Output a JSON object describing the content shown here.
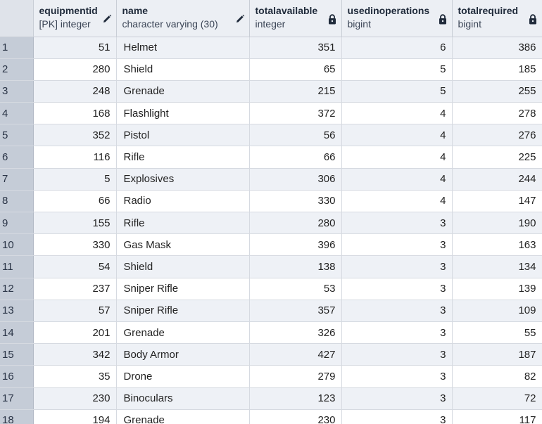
{
  "columns": [
    {
      "name": "equipmentid",
      "type": "[PK] integer",
      "icon": "pencil-icon"
    },
    {
      "name": "name",
      "type": "character varying (30)",
      "icon": "pencil-icon"
    },
    {
      "name": "totalavailable",
      "type": "integer",
      "icon": "lock-icon"
    },
    {
      "name": "usedinoperations",
      "type": "bigint",
      "icon": "lock-icon"
    },
    {
      "name": "totalrequired",
      "type": "bigint",
      "icon": "lock-icon"
    }
  ],
  "rows": [
    {
      "rn": "1",
      "equipmentid": "51",
      "name": "Helmet",
      "totalavailable": "351",
      "usedinoperations": "6",
      "totalrequired": "386"
    },
    {
      "rn": "2",
      "equipmentid": "280",
      "name": "Shield",
      "totalavailable": "65",
      "usedinoperations": "5",
      "totalrequired": "185"
    },
    {
      "rn": "3",
      "equipmentid": "248",
      "name": "Grenade",
      "totalavailable": "215",
      "usedinoperations": "5",
      "totalrequired": "255"
    },
    {
      "rn": "4",
      "equipmentid": "168",
      "name": "Flashlight",
      "totalavailable": "372",
      "usedinoperations": "4",
      "totalrequired": "278"
    },
    {
      "rn": "5",
      "equipmentid": "352",
      "name": "Pistol",
      "totalavailable": "56",
      "usedinoperations": "4",
      "totalrequired": "276"
    },
    {
      "rn": "6",
      "equipmentid": "116",
      "name": "Rifle",
      "totalavailable": "66",
      "usedinoperations": "4",
      "totalrequired": "225"
    },
    {
      "rn": "7",
      "equipmentid": "5",
      "name": "Explosives",
      "totalavailable": "306",
      "usedinoperations": "4",
      "totalrequired": "244"
    },
    {
      "rn": "8",
      "equipmentid": "66",
      "name": "Radio",
      "totalavailable": "330",
      "usedinoperations": "4",
      "totalrequired": "147"
    },
    {
      "rn": "9",
      "equipmentid": "155",
      "name": "Rifle",
      "totalavailable": "280",
      "usedinoperations": "3",
      "totalrequired": "190"
    },
    {
      "rn": "10",
      "equipmentid": "330",
      "name": "Gas Mask",
      "totalavailable": "396",
      "usedinoperations": "3",
      "totalrequired": "163"
    },
    {
      "rn": "11",
      "equipmentid": "54",
      "name": "Shield",
      "totalavailable": "138",
      "usedinoperations": "3",
      "totalrequired": "134"
    },
    {
      "rn": "12",
      "equipmentid": "237",
      "name": "Sniper Rifle",
      "totalavailable": "53",
      "usedinoperations": "3",
      "totalrequired": "139"
    },
    {
      "rn": "13",
      "equipmentid": "57",
      "name": "Sniper Rifle",
      "totalavailable": "357",
      "usedinoperations": "3",
      "totalrequired": "109"
    },
    {
      "rn": "14",
      "equipmentid": "201",
      "name": "Grenade",
      "totalavailable": "326",
      "usedinoperations": "3",
      "totalrequired": "55"
    },
    {
      "rn": "15",
      "equipmentid": "342",
      "name": "Body Armor",
      "totalavailable": "427",
      "usedinoperations": "3",
      "totalrequired": "187"
    },
    {
      "rn": "16",
      "equipmentid": "35",
      "name": "Drone",
      "totalavailable": "279",
      "usedinoperations": "3",
      "totalrequired": "82"
    },
    {
      "rn": "17",
      "equipmentid": "230",
      "name": "Binoculars",
      "totalavailable": "123",
      "usedinoperations": "3",
      "totalrequired": "72"
    },
    {
      "rn": "18",
      "equipmentid": "194",
      "name": "Grenade",
      "totalavailable": "230",
      "usedinoperations": "3",
      "totalrequired": "117"
    }
  ]
}
